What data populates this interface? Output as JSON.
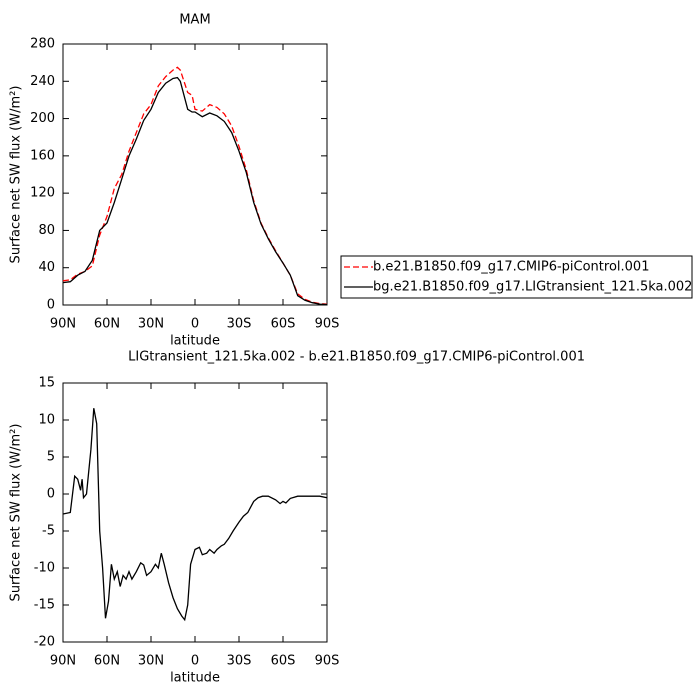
{
  "chart_data": [
    {
      "type": "line",
      "title": "MAM",
      "x_label": "latitude",
      "y_label": "Surface net SW flux (W/m²)",
      "x": [
        90,
        85,
        80,
        75,
        70,
        65,
        60,
        55,
        50,
        45,
        40,
        35,
        30,
        25,
        20,
        15,
        12,
        10,
        5,
        2,
        0,
        -5,
        -10,
        -15,
        -20,
        -25,
        -30,
        -35,
        -40,
        -45,
        -50,
        -55,
        -60,
        -65,
        -70,
        -75,
        -80,
        -85,
        -90
      ],
      "series": [
        {
          "name": "b.e21.B1850.f09_g17.CMIP6-piControl.001",
          "color": "#ff0000",
          "line_style": "dashed",
          "values": [
            26,
            27,
            33,
            36,
            42,
            75,
            95,
            125,
            140,
            165,
            185,
            205,
            215,
            235,
            245,
            252,
            255,
            252,
            228,
            225,
            210,
            208,
            215,
            212,
            205,
            192,
            170,
            145,
            112,
            88,
            72,
            58,
            45,
            32,
            12,
            6,
            3,
            1.5,
            1
          ]
        },
        {
          "name": "bg.e21.B1850.f09_g17.LIGtransient_121.5ka.002",
          "color": "#000000",
          "line_style": "solid",
          "values": [
            24,
            25,
            32,
            36,
            48,
            80,
            88,
            110,
            135,
            160,
            178,
            198,
            210,
            228,
            238,
            243,
            244,
            240,
            210,
            207,
            207,
            202,
            206,
            203,
            197,
            185,
            165,
            142,
            110,
            87,
            71,
            57,
            45,
            32,
            10,
            5,
            2.5,
            1,
            0.5
          ]
        }
      ],
      "xlim": [
        90,
        -90
      ],
      "xticks": [
        {
          "value": 90,
          "label": "90N"
        },
        {
          "value": 60,
          "label": "60N"
        },
        {
          "value": 30,
          "label": "30N"
        },
        0,
        {
          "value": -30,
          "label": "30S"
        },
        {
          "value": -60,
          "label": "60S"
        },
        {
          "value": -90,
          "label": "90S"
        }
      ],
      "ylim": [
        0,
        280
      ],
      "yticks": [
        0,
        40,
        80,
        120,
        160,
        200,
        240,
        280
      ],
      "legend": "right"
    },
    {
      "type": "line",
      "title": "LIGtransient_121.5ka.002 - b.e21.B1850.f09_g17.CMIP6-piControl.001",
      "x_label": "latitude",
      "y_label": "Surface net SW flux (W/m²)",
      "x": [
        90,
        85,
        82,
        80,
        78,
        77,
        76,
        74,
        71,
        69,
        67,
        65,
        63,
        61,
        59,
        57,
        55,
        53,
        51,
        49,
        47,
        45,
        43,
        40,
        37,
        35,
        33,
        30,
        27,
        25,
        23,
        21,
        18,
        15,
        12,
        9,
        7,
        5,
        3,
        0,
        -3,
        -5,
        -8,
        -10,
        -13,
        -15,
        -18,
        -20,
        -23,
        -26,
        -30,
        -33,
        -36,
        -40,
        -43,
        -46,
        -50,
        -55,
        -58,
        -60,
        -62,
        -65,
        -70,
        -75,
        -80,
        -85,
        -90
      ],
      "series": [
        {
          "color": "#000000",
          "line_style": "solid",
          "values": [
            -2.7,
            -2.5,
            2.4,
            2,
            0.5,
            2,
            -0.5,
            0,
            6,
            11.6,
            9.5,
            -5,
            -10,
            -16.8,
            -14.5,
            -9.5,
            -11.5,
            -10.5,
            -12.5,
            -11,
            -11.5,
            -10.5,
            -11.5,
            -10.5,
            -9.3,
            -9.6,
            -11,
            -10.5,
            -9.5,
            -10,
            -8,
            -9.5,
            -12,
            -14,
            -15.5,
            -16.5,
            -17,
            -15,
            -9.5,
            -7.5,
            -7.2,
            -8.2,
            -8,
            -7.5,
            -8,
            -7.5,
            -7,
            -6.8,
            -6,
            -5,
            -3.8,
            -3,
            -2.5,
            -1,
            -0.5,
            -0.3,
            -0.3,
            -0.8,
            -1.3,
            -1,
            -1.2,
            -0.6,
            -0.3,
            -0.3,
            -0.3,
            -0.3,
            -0.5
          ]
        }
      ],
      "xlim": [
        90,
        -90
      ],
      "xticks": [
        {
          "value": 90,
          "label": "90N"
        },
        {
          "value": 60,
          "label": "60N"
        },
        {
          "value": 30,
          "label": "30N"
        },
        0,
        {
          "value": -30,
          "label": "30S"
        },
        {
          "value": -60,
          "label": "60S"
        },
        {
          "value": -90,
          "label": "90S"
        }
      ],
      "ylim": [
        -20,
        15
      ],
      "yticks": [
        -20,
        -15,
        -10,
        -5,
        0,
        5,
        10,
        15
      ]
    }
  ]
}
